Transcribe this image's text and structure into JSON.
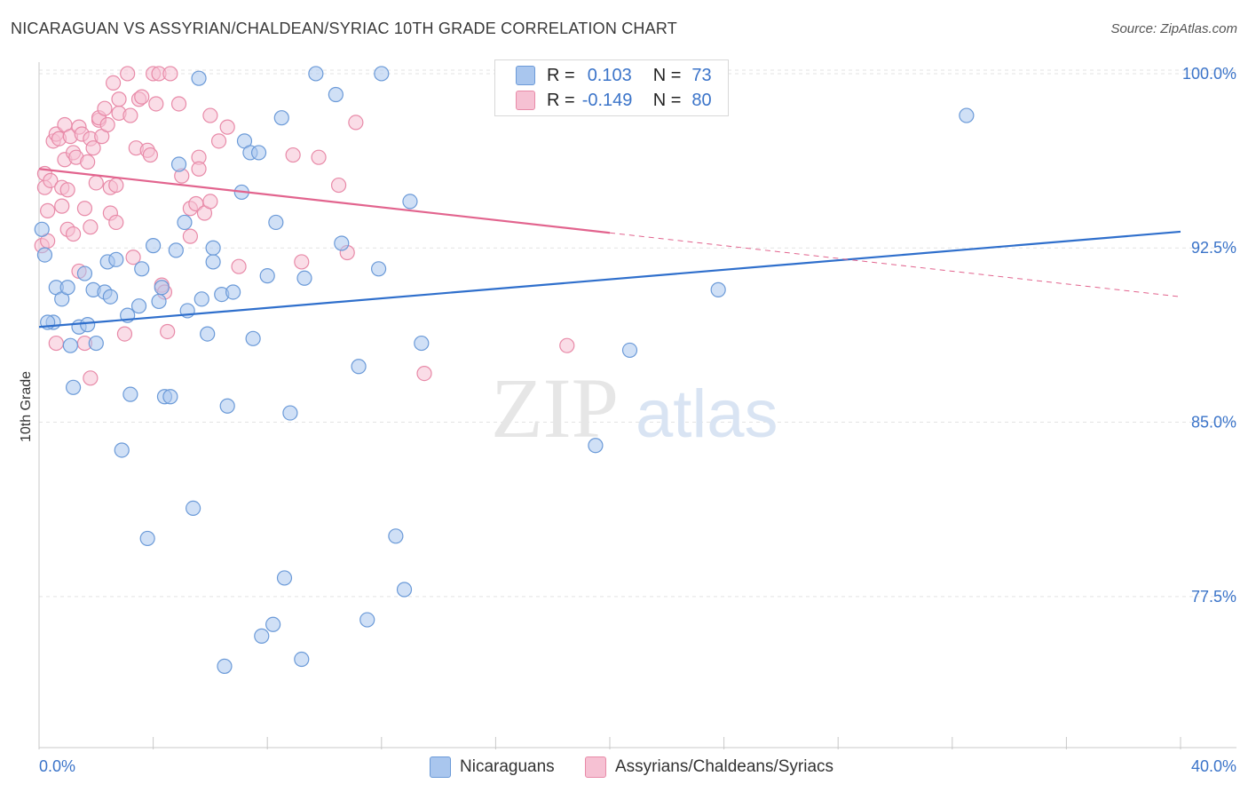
{
  "header": {
    "title": "NICARAGUAN VS ASSYRIAN/CHALDEAN/SYRIAC 10TH GRADE CORRELATION CHART",
    "source": "Source: ZipAtlas.com"
  },
  "legend_top": {
    "rows": [
      {
        "r_label": "R =",
        "r_value": "0.103",
        "n_label": "N =",
        "n_value": "73"
      },
      {
        "r_label": "R =",
        "r_value": "-0.149",
        "n_label": "N =",
        "n_value": "80"
      }
    ]
  },
  "legend_bottom": {
    "items": [
      {
        "label": "Nicaraguans"
      },
      {
        "label": "Assyrians/Chaldeans/Syriacs"
      }
    ]
  },
  "watermark": {
    "zip": "ZIP",
    "atlas": "atlas"
  },
  "colors": {
    "blue_fill": "#a9c6ee",
    "blue_stroke": "#6b9ad8",
    "blue_line": "#2f6fcc",
    "pink_fill": "#f6c1d3",
    "pink_stroke": "#e88aa8",
    "pink_line": "#e2648e",
    "tick_label": "#3b74c9",
    "grid": "#e3e3e3"
  },
  "chart_data": {
    "type": "scatter",
    "title": "NICARAGUAN VS ASSYRIAN/CHALDEAN/SYRIAC 10TH GRADE CORRELATION CHART",
    "xlabel": "",
    "ylabel": "10th Grade",
    "xlim": [
      0,
      40
    ],
    "ylim": [
      71.0,
      100.8
    ],
    "x_tick_labels": [
      {
        "value": 0,
        "label": "0.0%"
      },
      {
        "value": 40,
        "label": "40.0%"
      }
    ],
    "y_tick_labels": [
      {
        "value": 100.0,
        "label": "100.0%"
      },
      {
        "value": 92.5,
        "label": "92.5%"
      },
      {
        "value": 85.0,
        "label": "85.0%"
      },
      {
        "value": 77.5,
        "label": "77.5%"
      }
    ],
    "x_minor_ticks": [
      0,
      4,
      8,
      12,
      16,
      20,
      24,
      28,
      32,
      36,
      40
    ],
    "grid": true,
    "legend_placement": "top-center",
    "series": [
      {
        "name": "Nicaraguans",
        "r": 0.103,
        "n": 73,
        "trend": {
          "x0": 0,
          "y0": 89.1,
          "x1": 40,
          "y1": 93.2,
          "solid_until": 40
        },
        "points": [
          [
            0.1,
            93.3
          ],
          [
            0.2,
            92.2
          ],
          [
            0.5,
            89.3
          ],
          [
            0.6,
            90.8
          ],
          [
            0.8,
            90.3
          ],
          [
            1.0,
            90.8
          ],
          [
            1.1,
            88.3
          ],
          [
            1.2,
            86.5
          ],
          [
            1.4,
            89.1
          ],
          [
            1.6,
            91.4
          ],
          [
            1.7,
            89.2
          ],
          [
            1.9,
            90.7
          ],
          [
            2.0,
            88.4
          ],
          [
            2.3,
            90.6
          ],
          [
            2.4,
            91.9
          ],
          [
            2.5,
            90.4
          ],
          [
            2.7,
            92.0
          ],
          [
            2.9,
            83.8
          ],
          [
            3.1,
            89.6
          ],
          [
            3.2,
            86.2
          ],
          [
            3.5,
            90.0
          ],
          [
            3.6,
            91.6
          ],
          [
            3.8,
            80.0
          ],
          [
            4.0,
            92.6
          ],
          [
            4.2,
            90.2
          ],
          [
            4.3,
            90.8
          ],
          [
            4.4,
            86.1
          ],
          [
            4.6,
            86.1
          ],
          [
            4.8,
            92.4
          ],
          [
            4.9,
            96.1
          ],
          [
            5.1,
            93.6
          ],
          [
            5.2,
            89.8
          ],
          [
            5.4,
            81.3
          ],
          [
            5.6,
            99.8
          ],
          [
            5.7,
            90.3
          ],
          [
            5.9,
            88.8
          ],
          [
            6.1,
            92.5
          ],
          [
            6.1,
            91.9
          ],
          [
            6.4,
            90.5
          ],
          [
            6.5,
            74.5
          ],
          [
            6.6,
            85.7
          ],
          [
            6.8,
            90.6
          ],
          [
            7.1,
            94.9
          ],
          [
            7.2,
            97.1
          ],
          [
            7.4,
            96.6
          ],
          [
            7.5,
            88.6
          ],
          [
            7.7,
            96.6
          ],
          [
            7.8,
            75.8
          ],
          [
            8.0,
            91.3
          ],
          [
            8.2,
            76.3
          ],
          [
            8.3,
            93.6
          ],
          [
            8.5,
            98.1
          ],
          [
            8.6,
            78.3
          ],
          [
            8.8,
            85.4
          ],
          [
            9.2,
            74.8
          ],
          [
            9.3,
            91.2
          ],
          [
            9.7,
            100.0
          ],
          [
            10.4,
            99.1
          ],
          [
            10.6,
            92.7
          ],
          [
            11.2,
            87.4
          ],
          [
            11.5,
            76.5
          ],
          [
            11.9,
            91.6
          ],
          [
            12.0,
            100.0
          ],
          [
            12.5,
            80.1
          ],
          [
            12.8,
            77.8
          ],
          [
            13.0,
            94.5
          ],
          [
            13.4,
            88.4
          ],
          [
            17.2,
            99.8
          ],
          [
            19.5,
            84.0
          ],
          [
            20.7,
            88.1
          ],
          [
            23.8,
            90.7
          ],
          [
            32.5,
            98.2
          ],
          [
            0.3,
            89.3
          ]
        ]
      },
      {
        "name": "Assyrians/Chaldeans/Syriacs",
        "r": -0.149,
        "n": 80,
        "trend": {
          "x0": 0,
          "y0": 95.9,
          "x1": 40,
          "y1": 90.4,
          "solid_until": 20
        },
        "points": [
          [
            0.1,
            92.6
          ],
          [
            0.2,
            95.1
          ],
          [
            0.2,
            95.7
          ],
          [
            0.3,
            92.8
          ],
          [
            0.3,
            94.1
          ],
          [
            0.4,
            95.4
          ],
          [
            0.5,
            97.1
          ],
          [
            0.6,
            97.4
          ],
          [
            0.7,
            97.2
          ],
          [
            0.8,
            95.1
          ],
          [
            0.8,
            94.3
          ],
          [
            0.9,
            97.8
          ],
          [
            0.9,
            96.3
          ],
          [
            1.0,
            93.3
          ],
          [
            1.0,
            95.0
          ],
          [
            1.1,
            97.3
          ],
          [
            1.2,
            93.1
          ],
          [
            1.2,
            96.6
          ],
          [
            1.3,
            96.4
          ],
          [
            1.4,
            91.5
          ],
          [
            1.4,
            97.7
          ],
          [
            1.5,
            97.4
          ],
          [
            1.6,
            94.2
          ],
          [
            1.6,
            88.4
          ],
          [
            1.7,
            96.2
          ],
          [
            1.8,
            97.2
          ],
          [
            1.8,
            93.4
          ],
          [
            1.8,
            86.9
          ],
          [
            1.9,
            96.8
          ],
          [
            2.0,
            95.3
          ],
          [
            2.1,
            98.0
          ],
          [
            2.1,
            98.1
          ],
          [
            2.2,
            97.3
          ],
          [
            2.3,
            98.5
          ],
          [
            2.4,
            97.8
          ],
          [
            2.5,
            94.0
          ],
          [
            2.5,
            95.1
          ],
          [
            2.6,
            99.6
          ],
          [
            2.7,
            93.6
          ],
          [
            2.7,
            95.2
          ],
          [
            2.8,
            98.3
          ],
          [
            2.8,
            98.9
          ],
          [
            3.0,
            88.8
          ],
          [
            3.1,
            100.0
          ],
          [
            3.2,
            98.2
          ],
          [
            3.3,
            92.1
          ],
          [
            3.4,
            96.8
          ],
          [
            3.5,
            98.9
          ],
          [
            3.6,
            99.0
          ],
          [
            3.8,
            96.7
          ],
          [
            3.9,
            96.5
          ],
          [
            4.0,
            100.0
          ],
          [
            4.1,
            98.7
          ],
          [
            4.2,
            100.0
          ],
          [
            4.3,
            90.9
          ],
          [
            4.4,
            90.6
          ],
          [
            4.5,
            88.9
          ],
          [
            4.6,
            100.0
          ],
          [
            4.9,
            98.7
          ],
          [
            5.0,
            95.6
          ],
          [
            5.3,
            94.2
          ],
          [
            5.3,
            93.0
          ],
          [
            5.5,
            94.4
          ],
          [
            5.6,
            96.4
          ],
          [
            5.6,
            95.9
          ],
          [
            5.8,
            94.0
          ],
          [
            6.0,
            98.2
          ],
          [
            6.0,
            94.5
          ],
          [
            6.3,
            97.1
          ],
          [
            6.6,
            97.7
          ],
          [
            7.0,
            91.7
          ],
          [
            8.9,
            96.5
          ],
          [
            9.2,
            91.9
          ],
          [
            9.8,
            96.4
          ],
          [
            10.5,
            95.2
          ],
          [
            10.8,
            92.3
          ],
          [
            11.1,
            97.9
          ],
          [
            13.5,
            87.1
          ],
          [
            18.5,
            88.3
          ],
          [
            0.6,
            88.4
          ]
        ]
      }
    ]
  }
}
